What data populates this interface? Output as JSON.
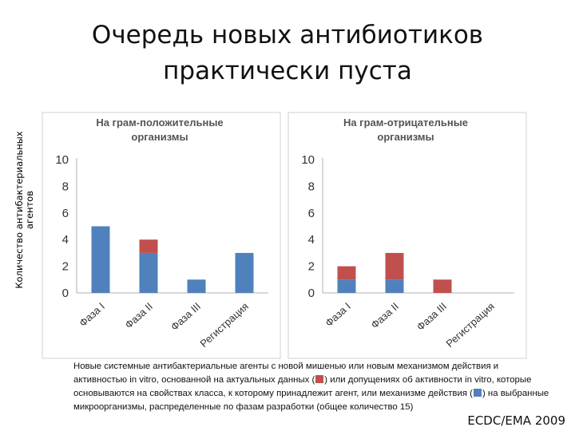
{
  "title": {
    "line1": "Очередь новых антибиотиков",
    "line2": "практически пуста"
  },
  "y_axis_label": {
    "line1": "Количество антибактериальных",
    "line2": "агентов"
  },
  "colors": {
    "blue": "#4f81bd",
    "red": "#c0504d"
  },
  "chart_data": [
    {
      "type": "bar",
      "stacked": true,
      "title_lines": [
        "На грам-положительные",
        "организмы"
      ],
      "categories": [
        "Фаза I",
        "Фаза II",
        "Фаза III",
        "Регистрация"
      ],
      "series": [
        {
          "color": "blue",
          "values": [
            5,
            3,
            1,
            3
          ]
        },
        {
          "color": "red",
          "values": [
            0,
            1,
            0,
            0
          ]
        }
      ],
      "ylim": [
        0,
        10
      ],
      "yticks": [
        0,
        2,
        4,
        6,
        8,
        10
      ]
    },
    {
      "type": "bar",
      "stacked": true,
      "title_lines": [
        "На грам-отрицательные",
        "организмы"
      ],
      "categories": [
        "Фаза I",
        "Фаза II",
        "Фаза III",
        "Регистрация"
      ],
      "series": [
        {
          "color": "blue",
          "values": [
            1,
            1,
            0,
            0
          ]
        },
        {
          "color": "red",
          "values": [
            1,
            2,
            1,
            0
          ]
        }
      ],
      "ylim": [
        0,
        10
      ],
      "yticks": [
        0,
        2,
        4,
        6,
        8,
        10
      ]
    }
  ],
  "footnote": {
    "part1": "Новые системные антибактериальные агенты с новой мишенью или новым механизмом действия и активностью in vitro, основанной на актуальных данных (",
    "part2": ") или допущениях об активности in vitro, которые основываются на свойствах класса, к которому принадлежит агент, или механизме действия (",
    "part3": ") на выбранные микроорганизмы, распределенные по фазам разработки (общее количество  15)"
  },
  "credit": "ECDC/EMA 2009"
}
